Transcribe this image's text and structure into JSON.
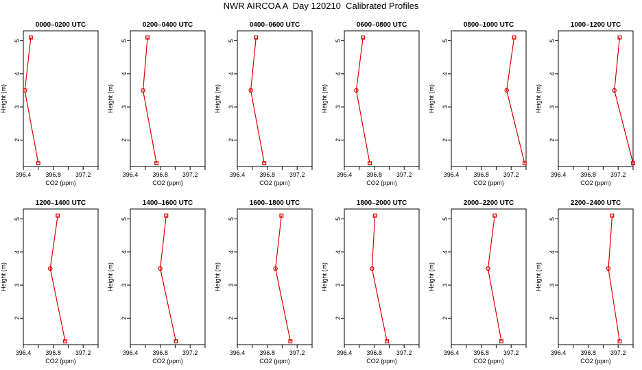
{
  "title": "NWR AIRCOA A  Day 120210  Calibrated Profiles",
  "colors": {
    "series": "#dd0000",
    "frame": "#000000"
  },
  "chart_data": [
    {
      "type": "line",
      "title": "0000–0200 UTC",
      "xlabel": "CO2 (ppm)",
      "ylabel": "Height (m)",
      "xticks": [
        "396.4",
        "396.8",
        "397.2"
      ],
      "yticks": [
        "2",
        "3",
        "4",
        "5"
      ],
      "xlim": [
        396.4,
        397.4
      ],
      "ylim": [
        1.2,
        5.3
      ],
      "grid": false,
      "points": [
        {
          "x": 396.5,
          "y": 5.1
        },
        {
          "x": 396.42,
          "y": 3.5
        },
        {
          "x": 396.6,
          "y": 1.3
        }
      ]
    },
    {
      "type": "line",
      "title": "0200–0400 UTC",
      "xlabel": "CO2 (ppm)",
      "ylabel": "Height (m)",
      "xticks": [
        "396.4",
        "396.8",
        "397.2"
      ],
      "yticks": [
        "2",
        "3",
        "4",
        "5"
      ],
      "xlim": [
        396.4,
        397.4
      ],
      "ylim": [
        1.2,
        5.3
      ],
      "grid": false,
      "points": [
        {
          "x": 396.63,
          "y": 5.1
        },
        {
          "x": 396.57,
          "y": 3.5
        },
        {
          "x": 396.75,
          "y": 1.3
        }
      ]
    },
    {
      "type": "line",
      "title": "0400–0600 UTC",
      "xlabel": "CO2 (ppm)",
      "ylabel": "Height (m)",
      "xticks": [
        "396.4",
        "396.8",
        "397.2"
      ],
      "yticks": [
        "2",
        "3",
        "4",
        "5"
      ],
      "xlim": [
        396.4,
        397.4
      ],
      "ylim": [
        1.2,
        5.3
      ],
      "grid": false,
      "points": [
        {
          "x": 396.65,
          "y": 5.1
        },
        {
          "x": 396.58,
          "y": 3.5
        },
        {
          "x": 396.76,
          "y": 1.3
        }
      ]
    },
    {
      "type": "line",
      "title": "0600–0800 UTC",
      "xlabel": "CO2 (ppm)",
      "ylabel": "Height (m)",
      "xticks": [
        "396.4",
        "396.8",
        "397.2"
      ],
      "yticks": [
        "2",
        "3",
        "4",
        "5"
      ],
      "xlim": [
        396.4,
        397.4
      ],
      "ylim": [
        1.2,
        5.3
      ],
      "grid": false,
      "points": [
        {
          "x": 396.65,
          "y": 5.1
        },
        {
          "x": 396.56,
          "y": 3.5
        },
        {
          "x": 396.74,
          "y": 1.3
        }
      ]
    },
    {
      "type": "line",
      "title": "0800–1000 UTC",
      "xlabel": "CO2 (ppm)",
      "ylabel": "Height (m)",
      "xticks": [
        "396.4",
        "396.8",
        "397.2"
      ],
      "yticks": [
        "2",
        "3",
        "4",
        "5"
      ],
      "xlim": [
        396.4,
        397.4
      ],
      "ylim": [
        1.2,
        5.3
      ],
      "grid": false,
      "points": [
        {
          "x": 397.24,
          "y": 5.1
        },
        {
          "x": 397.14,
          "y": 3.5
        },
        {
          "x": 397.38,
          "y": 1.3
        }
      ]
    },
    {
      "type": "line",
      "title": "1000–1200 UTC",
      "xlabel": "CO2 (ppm)",
      "ylabel": "Height (m)",
      "xticks": [
        "396.4",
        "396.8",
        "397.2"
      ],
      "yticks": [
        "2",
        "3",
        "4",
        "5"
      ],
      "xlim": [
        396.4,
        397.4
      ],
      "ylim": [
        1.2,
        5.3
      ],
      "grid": false,
      "points": [
        {
          "x": 397.22,
          "y": 5.1
        },
        {
          "x": 397.15,
          "y": 3.5
        },
        {
          "x": 397.4,
          "y": 1.3
        }
      ]
    },
    {
      "type": "line",
      "title": "1200–1400 UTC",
      "xlabel": "CO2 (ppm)",
      "ylabel": "Height (m)",
      "xticks": [
        "396.4",
        "396.8",
        "397.2"
      ],
      "yticks": [
        "2",
        "3",
        "4",
        "5"
      ],
      "xlim": [
        396.4,
        397.4
      ],
      "ylim": [
        1.2,
        5.3
      ],
      "grid": false,
      "points": [
        {
          "x": 396.86,
          "y": 5.1
        },
        {
          "x": 396.76,
          "y": 3.5
        },
        {
          "x": 396.96,
          "y": 1.3
        }
      ]
    },
    {
      "type": "line",
      "title": "1400–1600 UTC",
      "xlabel": "CO2 (ppm)",
      "ylabel": "Height (m)",
      "xticks": [
        "396.4",
        "396.8",
        "397.2"
      ],
      "yticks": [
        "2",
        "3",
        "4",
        "5"
      ],
      "xlim": [
        396.4,
        397.4
      ],
      "ylim": [
        1.2,
        5.3
      ],
      "grid": false,
      "points": [
        {
          "x": 396.88,
          "y": 5.1
        },
        {
          "x": 396.8,
          "y": 3.5
        },
        {
          "x": 397.01,
          "y": 1.3
        }
      ]
    },
    {
      "type": "line",
      "title": "1600–1800 UTC",
      "xlabel": "CO2 (ppm)",
      "ylabel": "Height (m)",
      "xticks": [
        "396.4",
        "396.8",
        "397.2"
      ],
      "yticks": [
        "2",
        "3",
        "4",
        "5"
      ],
      "xlim": [
        396.4,
        397.4
      ],
      "ylim": [
        1.2,
        5.3
      ],
      "grid": false,
      "points": [
        {
          "x": 396.99,
          "y": 5.1
        },
        {
          "x": 396.91,
          "y": 3.5
        },
        {
          "x": 397.11,
          "y": 1.3
        }
      ]
    },
    {
      "type": "line",
      "title": "1800–2000 UTC",
      "xlabel": "CO2 (ppm)",
      "ylabel": "Height (m)",
      "xticks": [
        "396.4",
        "396.8",
        "397.2"
      ],
      "yticks": [
        "2",
        "3",
        "4",
        "5"
      ],
      "xlim": [
        396.4,
        397.4
      ],
      "ylim": [
        1.2,
        5.3
      ],
      "grid": false,
      "points": [
        {
          "x": 396.81,
          "y": 5.1
        },
        {
          "x": 396.77,
          "y": 3.5
        },
        {
          "x": 396.97,
          "y": 1.3
        }
      ]
    },
    {
      "type": "line",
      "title": "2000–2200 UTC",
      "xlabel": "CO2 (ppm)",
      "ylabel": "Height (m)",
      "xticks": [
        "396.4",
        "396.8",
        "397.2"
      ],
      "yticks": [
        "2",
        "3",
        "4",
        "5"
      ],
      "xlim": [
        396.4,
        397.4
      ],
      "ylim": [
        1.2,
        5.3
      ],
      "grid": false,
      "points": [
        {
          "x": 396.98,
          "y": 5.1
        },
        {
          "x": 396.89,
          "y": 3.5
        },
        {
          "x": 397.07,
          "y": 1.3
        }
      ]
    },
    {
      "type": "line",
      "title": "2200–2400 UTC",
      "xlabel": "CO2 (ppm)",
      "ylabel": "Height (m)",
      "xticks": [
        "396.4",
        "396.8",
        "397.2"
      ],
      "yticks": [
        "2",
        "3",
        "4",
        "5"
      ],
      "xlim": [
        396.4,
        397.4
      ],
      "ylim": [
        1.2,
        5.3
      ],
      "grid": false,
      "points": [
        {
          "x": 397.12,
          "y": 5.1
        },
        {
          "x": 397.07,
          "y": 3.5
        },
        {
          "x": 397.22,
          "y": 1.3
        }
      ]
    }
  ]
}
